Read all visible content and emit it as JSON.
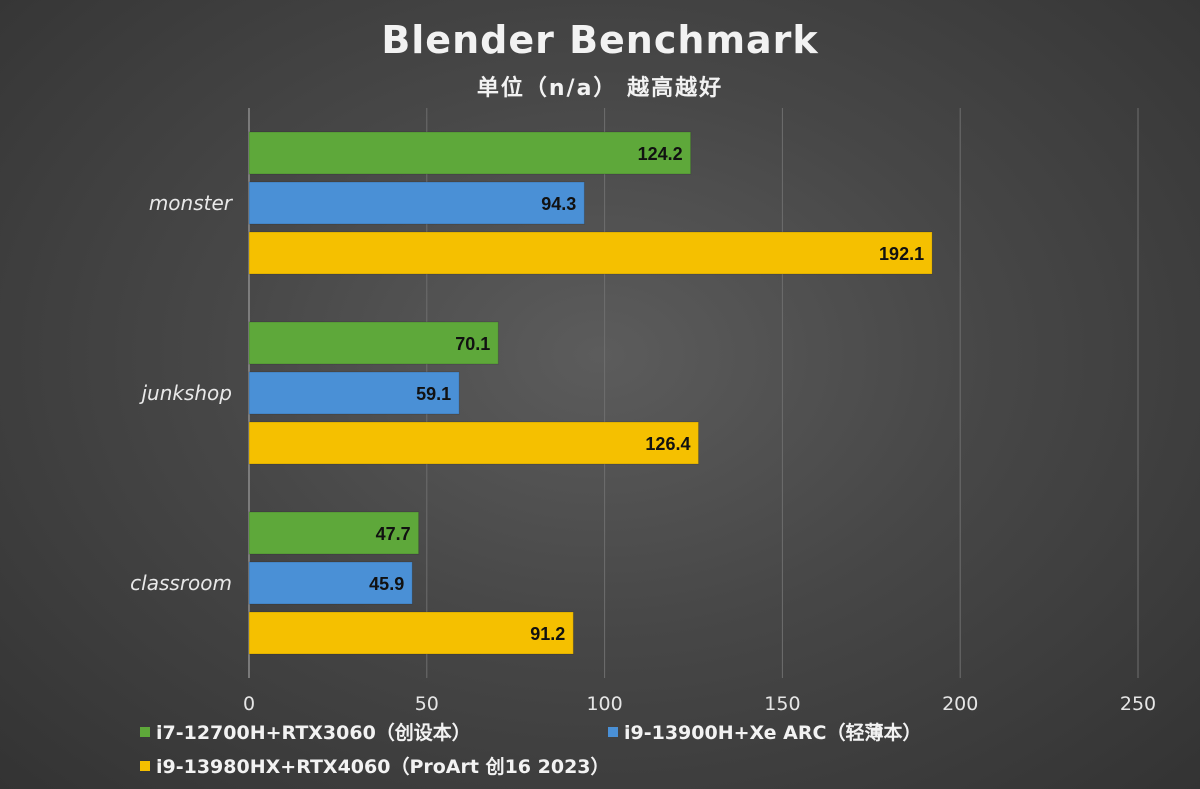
{
  "chart_data": {
    "type": "bar",
    "orientation": "horizontal",
    "title": "Blender Benchmark",
    "subtitle": "单位（n/a） 越高越好",
    "categories": [
      "monster",
      "junkshop",
      "classroom"
    ],
    "series": [
      {
        "name": "i7-12700H+RTX3060（创设本）",
        "color": "#5ea83a",
        "values": [
          124.2,
          70.1,
          47.7
        ]
      },
      {
        "name": "i9-13900H+Xe ARC（轻薄本）",
        "color": "#4a90d6",
        "values": [
          94.3,
          59.1,
          45.9
        ]
      },
      {
        "name": "i9-13980HX+RTX4060（ProArt 创16 2023）",
        "color": "#f5c000",
        "values": [
          192.1,
          126.4,
          91.2
        ]
      }
    ],
    "xlim": [
      0,
      250
    ],
    "xticks": [
      0,
      50,
      100,
      150,
      200,
      250
    ],
    "grid": true,
    "legend_position": "bottom"
  }
}
